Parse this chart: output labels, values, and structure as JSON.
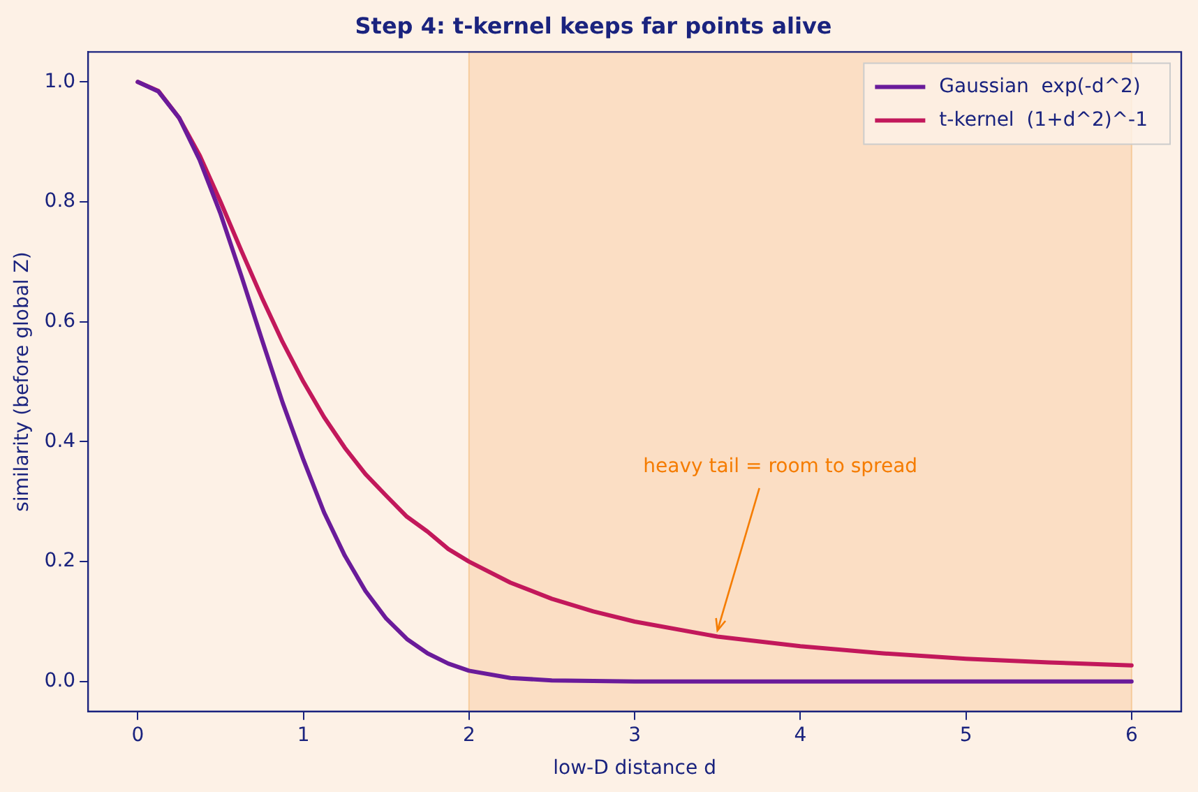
{
  "chart_data": {
    "type": "line",
    "title": "Step 4: t-kernel keeps far points alive",
    "xlabel": "low-D distance d",
    "ylabel": "similarity (before global Z)",
    "xlim": [
      -0.3,
      6.3
    ],
    "xticks": [
      0,
      1,
      2,
      3,
      4,
      5,
      6
    ],
    "ylim": [
      -0.05,
      1.05
    ],
    "yticks": [
      {
        "value": 0,
        "label": "0.0"
      },
      {
        "value": 0.2,
        "label": "0.2"
      },
      {
        "value": 0.4,
        "label": "0.4"
      },
      {
        "value": 0.6,
        "label": "0.6"
      },
      {
        "value": 0.8,
        "label": "0.8"
      },
      {
        "value": 1,
        "label": "1.0"
      }
    ],
    "grid": false,
    "legend": "top right",
    "marker": "none",
    "line_style": "solid",
    "series": [
      {
        "name": "Gaussian  exp(-d^2)",
        "color": "#6a1b9a",
        "x": [
          0,
          0.125,
          0.25,
          0.375,
          0.5,
          0.625,
          0.75,
          0.875,
          1,
          1.125,
          1.25,
          1.375,
          1.5,
          1.625,
          1.75,
          1.875,
          2,
          2.25,
          2.5,
          2.75,
          3,
          3.5,
          4,
          4.5,
          5,
          5.5,
          6
        ],
        "values": [
          1,
          0.984,
          0.94,
          0.869,
          0.78,
          0.677,
          0.57,
          0.465,
          0.37,
          0.282,
          0.21,
          0.151,
          0.105,
          0.071,
          0.047,
          0.03,
          0.018,
          0.006,
          0.002,
          0.001,
          0,
          0,
          0,
          0,
          0,
          0,
          0
        ]
      },
      {
        "name": "t-kernel  (1+d^2)^-1",
        "color": "#c2185b",
        "x": [
          0,
          0.125,
          0.25,
          0.375,
          0.5,
          0.625,
          0.75,
          0.875,
          1,
          1.125,
          1.25,
          1.375,
          1.5,
          1.625,
          1.75,
          1.875,
          2,
          2.25,
          2.5,
          2.75,
          3,
          3.5,
          4,
          4.5,
          5,
          5.5,
          6
        ],
        "values": [
          1,
          0.985,
          0.94,
          0.877,
          0.8,
          0.719,
          0.64,
          0.566,
          0.5,
          0.441,
          0.39,
          0.346,
          0.31,
          0.275,
          0.25,
          0.221,
          0.2,
          0.165,
          0.138,
          0.117,
          0.1,
          0.075,
          0.059,
          0.047,
          0.038,
          0.032,
          0.027
        ]
      }
    ],
    "bands": [
      {
        "axis": "x",
        "from": 2,
        "to": 6,
        "color": "#fbdcc0"
      }
    ],
    "annotations": [
      {
        "text": "heavy tail = room to spread",
        "x": 3.5,
        "y": 0.085
      }
    ]
  }
}
